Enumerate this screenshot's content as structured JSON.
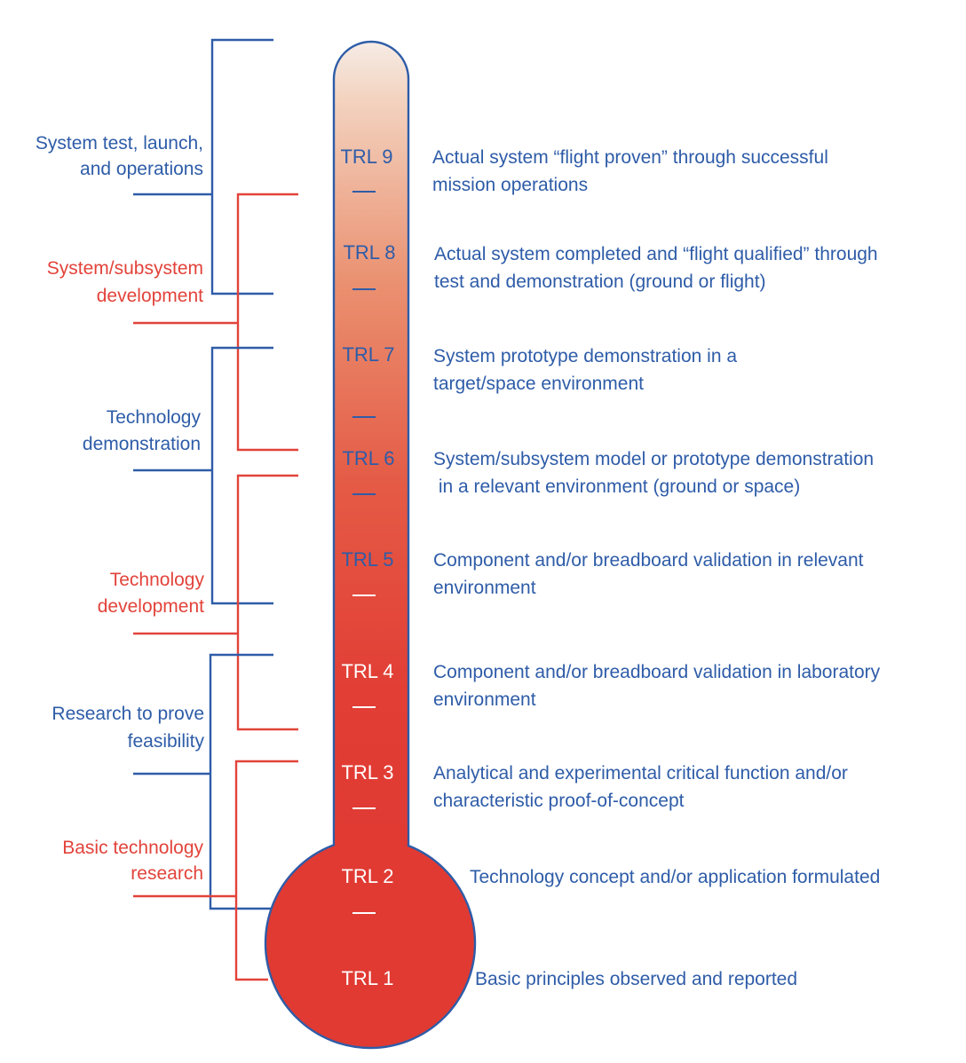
{
  "levels": [
    {
      "label": "TRL 9",
      "description": [
        "Actual system “flight proven” through successful",
        "mission operations"
      ]
    },
    {
      "label": "TRL 8",
      "description": [
        "Actual system completed and “flight qualified” through",
        "test and demonstration (ground or flight)"
      ]
    },
    {
      "label": "TRL 7",
      "description": [
        "System prototype demonstration in a",
        "target/space environment"
      ]
    },
    {
      "label": "TRL 6",
      "description": [
        "System/subsystem model or prototype demonstration",
        " in a relevant environment (ground or space)"
      ]
    },
    {
      "label": "TRL 5",
      "description": [
        "Component and/or breadboard validation in relevant",
        "environment"
      ]
    },
    {
      "label": "TRL 4",
      "description": [
        "Component and/or breadboard validation in laboratory",
        "environment"
      ]
    },
    {
      "label": "TRL 3",
      "description": [
        "Analytical and experimental critical function and/or",
        "characteristic proof-of-concept"
      ]
    },
    {
      "label": "TRL 2",
      "description": [
        "Technology concept and/or application formulated"
      ]
    },
    {
      "label": "TRL 1",
      "description": [
        "Basic principles observed and reported"
      ]
    }
  ],
  "phases": [
    {
      "lines": [
        "System test, launch,",
        "and operations"
      ],
      "color": "#2e5ca8"
    },
    {
      "lines": [
        "System/subsystem",
        "development"
      ],
      "color": "#e2433a"
    },
    {
      "lines": [
        "Technology",
        "demonstration"
      ],
      "color": "#2e5ca8"
    },
    {
      "lines": [
        "Technology",
        "development"
      ],
      "color": "#e2433a"
    },
    {
      "lines": [
        "Research to prove",
        "feasibility"
      ],
      "color": "#2e5ca8"
    },
    {
      "lines": [
        "Basic technology",
        "research"
      ],
      "color": "#e2433a"
    }
  ],
  "colors": {
    "blue": "#2e5ca8",
    "red": "#e2433a",
    "thermometer_top": "#f5ddd0",
    "thermometer_bottom": "#e23a33"
  }
}
